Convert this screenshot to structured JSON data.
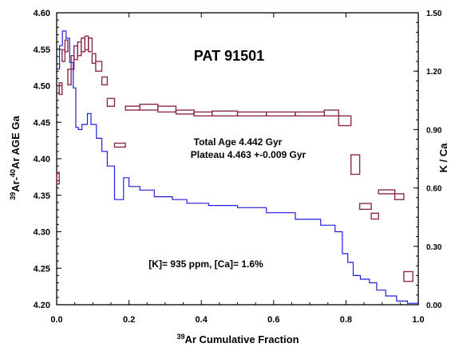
{
  "chart_data": {
    "type": "line",
    "title": "PAT 91501",
    "xlabel_sup": "39",
    "xlabel_text": "Ar Cumulative Fraction",
    "ylabel_parts": [
      "39",
      "Ar-",
      "40",
      "Ar AGE Ga"
    ],
    "y2label": "K / Ca",
    "xlim": [
      0,
      1
    ],
    "ylim": [
      4.2,
      4.6
    ],
    "y2lim": [
      0,
      1.5
    ],
    "xticks": [
      "0.0",
      "0.2",
      "0.4",
      "0.6",
      "0.8",
      "1.0"
    ],
    "yticks": [
      "4.20",
      "4.25",
      "4.30",
      "4.35",
      "4.40",
      "4.45",
      "4.50",
      "4.55",
      "4.60"
    ],
    "y2ticks": [
      "0.00",
      "0.30",
      "0.60",
      "0.90",
      "1.20",
      "1.50"
    ],
    "annotations": {
      "total_age": "Total Age  4.442 Gyr",
      "plateau": "Plateau   4.463 +-0.009 Gyr",
      "composition": "[K]= 935 ppm,   [Ca]= 1.6%"
    },
    "series": [
      {
        "role": "age_spectrum",
        "color": "#1e1ee0",
        "steps": [
          [
            0.0,
            0.008,
            4.523
          ],
          [
            0.008,
            0.016,
            4.555
          ],
          [
            0.016,
            0.026,
            4.575
          ],
          [
            0.026,
            0.036,
            4.565
          ],
          [
            0.036,
            0.046,
            4.532
          ],
          [
            0.046,
            0.053,
            4.497
          ],
          [
            0.053,
            0.06,
            4.443
          ],
          [
            0.06,
            0.07,
            4.44
          ],
          [
            0.07,
            0.085,
            4.447
          ],
          [
            0.085,
            0.095,
            4.462
          ],
          [
            0.095,
            0.11,
            4.447
          ],
          [
            0.11,
            0.125,
            4.428
          ],
          [
            0.125,
            0.14,
            4.41
          ],
          [
            0.14,
            0.16,
            4.39
          ],
          [
            0.16,
            0.185,
            4.344
          ],
          [
            0.185,
            0.2,
            4.374
          ],
          [
            0.2,
            0.23,
            4.362
          ],
          [
            0.23,
            0.27,
            4.357
          ],
          [
            0.27,
            0.32,
            4.348
          ],
          [
            0.32,
            0.36,
            4.344
          ],
          [
            0.36,
            0.42,
            4.339
          ],
          [
            0.42,
            0.5,
            4.336
          ],
          [
            0.5,
            0.58,
            4.333
          ],
          [
            0.58,
            0.66,
            4.326
          ],
          [
            0.66,
            0.73,
            4.317
          ],
          [
            0.73,
            0.77,
            4.309
          ],
          [
            0.77,
            0.79,
            4.3
          ],
          [
            0.79,
            0.805,
            4.27
          ],
          [
            0.805,
            0.82,
            4.258
          ],
          [
            0.82,
            0.84,
            4.24
          ],
          [
            0.84,
            0.865,
            4.235
          ],
          [
            0.865,
            0.885,
            4.23
          ],
          [
            0.885,
            0.91,
            4.22
          ],
          [
            0.91,
            0.94,
            4.212
          ],
          [
            0.94,
            0.97,
            4.205
          ],
          [
            0.97,
            1.0,
            4.202
          ]
        ]
      },
      {
        "role": "k_ca_ratio",
        "color": "#8b2a4a",
        "boxes": [
          [
            0.0,
            0.007,
            0.62,
            0.68
          ],
          [
            0.007,
            0.015,
            1.08,
            1.14
          ],
          [
            0.015,
            0.023,
            1.25,
            1.31
          ],
          [
            0.023,
            0.031,
            1.3,
            1.36
          ],
          [
            0.031,
            0.04,
            1.13,
            1.21
          ],
          [
            0.04,
            0.048,
            1.21,
            1.28
          ],
          [
            0.048,
            0.058,
            1.26,
            1.33
          ],
          [
            0.058,
            0.068,
            1.28,
            1.35
          ],
          [
            0.068,
            0.078,
            1.3,
            1.37
          ],
          [
            0.078,
            0.088,
            1.31,
            1.38
          ],
          [
            0.088,
            0.098,
            1.3,
            1.37
          ],
          [
            0.098,
            0.108,
            1.24,
            1.29
          ],
          [
            0.108,
            0.125,
            1.2,
            1.25
          ],
          [
            0.125,
            0.14,
            1.13,
            1.17
          ],
          [
            0.14,
            0.16,
            1.02,
            1.06
          ],
          [
            0.16,
            0.19,
            0.81,
            0.83
          ],
          [
            0.19,
            0.23,
            1.0,
            1.02
          ],
          [
            0.23,
            0.28,
            1.0,
            1.03
          ],
          [
            0.28,
            0.33,
            0.99,
            1.02
          ],
          [
            0.33,
            0.38,
            0.98,
            1.0
          ],
          [
            0.38,
            0.43,
            0.97,
            0.99
          ],
          [
            0.43,
            0.5,
            0.97,
            0.995
          ],
          [
            0.5,
            0.58,
            0.97,
            0.99
          ],
          [
            0.58,
            0.66,
            0.97,
            0.99
          ],
          [
            0.66,
            0.74,
            0.97,
            0.99
          ],
          [
            0.74,
            0.78,
            0.97,
            1.0
          ],
          [
            0.78,
            0.814,
            0.92,
            0.97
          ],
          [
            0.814,
            0.838,
            0.67,
            0.77
          ],
          [
            0.838,
            0.87,
            0.49,
            0.52
          ],
          [
            0.87,
            0.89,
            0.44,
            0.47
          ],
          [
            0.89,
            0.935,
            0.57,
            0.59
          ],
          [
            0.935,
            0.96,
            0.54,
            0.57
          ],
          [
            0.96,
            0.985,
            0.12,
            0.17
          ]
        ]
      }
    ]
  }
}
